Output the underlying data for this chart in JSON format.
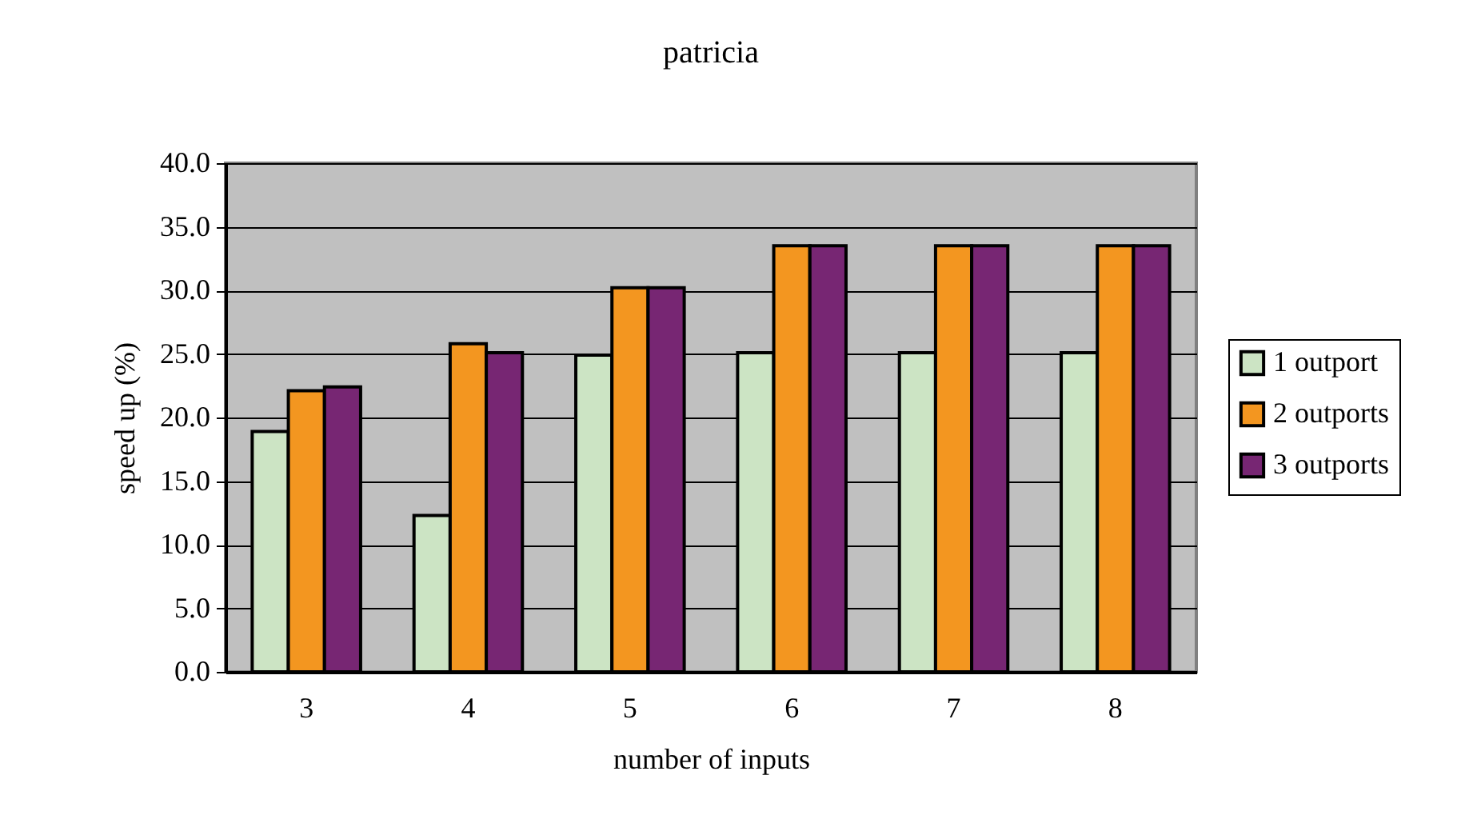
{
  "chart_data": {
    "type": "bar",
    "title": "patricia",
    "xlabel": "number of inputs",
    "ylabel": "speed up (%)",
    "categories": [
      "3",
      "4",
      "5",
      "6",
      "7",
      "8"
    ],
    "series": [
      {
        "name": "1 outport",
        "color": "#cce4c4",
        "values": [
          18.9,
          12.3,
          24.9,
          25.1,
          25.1,
          25.1
        ]
      },
      {
        "name": "2 outports",
        "color": "#f39620",
        "values": [
          22.1,
          25.8,
          30.2,
          33.5,
          33.5,
          33.5
        ]
      },
      {
        "name": "3 outports",
        "color": "#772673",
        "values": [
          22.4,
          25.1,
          30.2,
          33.5,
          33.5,
          33.5
        ]
      }
    ],
    "ylim": [
      0,
      40
    ],
    "yticks": [
      {
        "value": 0,
        "label": "0.0"
      },
      {
        "value": 5,
        "label": "5.0"
      },
      {
        "value": 10,
        "label": "10.0"
      },
      {
        "value": 15,
        "label": "15.0"
      },
      {
        "value": 20,
        "label": "20.0"
      },
      {
        "value": 25,
        "label": "25.0"
      },
      {
        "value": 30,
        "label": "30.0"
      },
      {
        "value": 35,
        "label": "35.0"
      },
      {
        "value": 40,
        "label": "40.0"
      }
    ],
    "grid": "y",
    "legend": "right"
  }
}
